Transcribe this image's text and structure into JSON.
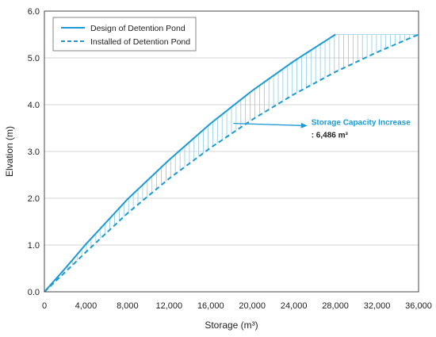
{
  "chart_data": {
    "type": "line",
    "xlabel": "Storage (m³)",
    "ylabel": "Elvation (m)",
    "xlim": [
      0,
      36000
    ],
    "ylim": [
      0,
      6.0
    ],
    "x_ticks": [
      0,
      4000,
      8000,
      12000,
      16000,
      20000,
      24000,
      28000,
      32000,
      36000
    ],
    "x_tick_labels": [
      "0",
      "4,000",
      "8,000",
      "12,000",
      "16,000",
      "20,000",
      "24,000",
      "28,000",
      "32,000",
      "36,000"
    ],
    "y_ticks": [
      0,
      1,
      2,
      3,
      4,
      5,
      6
    ],
    "y_tick_labels": [
      "0.0",
      "1.0",
      "2.0",
      "3.0",
      "4.0",
      "5.0",
      "6.0"
    ],
    "grid": "horizontal",
    "legend_position": "top-left",
    "series": [
      {
        "name": "Design of Detention Pond",
        "style": "solid",
        "color": "#1a9ad6",
        "points": [
          [
            0,
            0
          ],
          [
            2000,
            0.5
          ],
          [
            4000,
            1.02
          ],
          [
            8000,
            1.98
          ],
          [
            12000,
            2.82
          ],
          [
            16000,
            3.6
          ],
          [
            20000,
            4.3
          ],
          [
            24000,
            4.93
          ],
          [
            28000,
            5.5
          ]
        ]
      },
      {
        "name": "Installed of Detention Pond",
        "style": "dashed",
        "color": "#1a9ad6",
        "points": [
          [
            0,
            0
          ],
          [
            2000,
            0.42
          ],
          [
            4000,
            0.85
          ],
          [
            8000,
            1.68
          ],
          [
            12000,
            2.42
          ],
          [
            16000,
            3.08
          ],
          [
            20000,
            3.68
          ],
          [
            24000,
            4.22
          ],
          [
            28000,
            4.7
          ],
          [
            32000,
            5.12
          ],
          [
            36000,
            5.5
          ]
        ]
      }
    ],
    "fill_between": {
      "color": "#8fcbe6",
      "style": "vertical-hatch"
    },
    "annotation": {
      "title": "Storage Capacity Increase",
      "value": ": 6,486 m³",
      "arrow_from": [
        18200,
        3.6
      ],
      "arrow_to": [
        25300,
        3.55
      ]
    }
  }
}
